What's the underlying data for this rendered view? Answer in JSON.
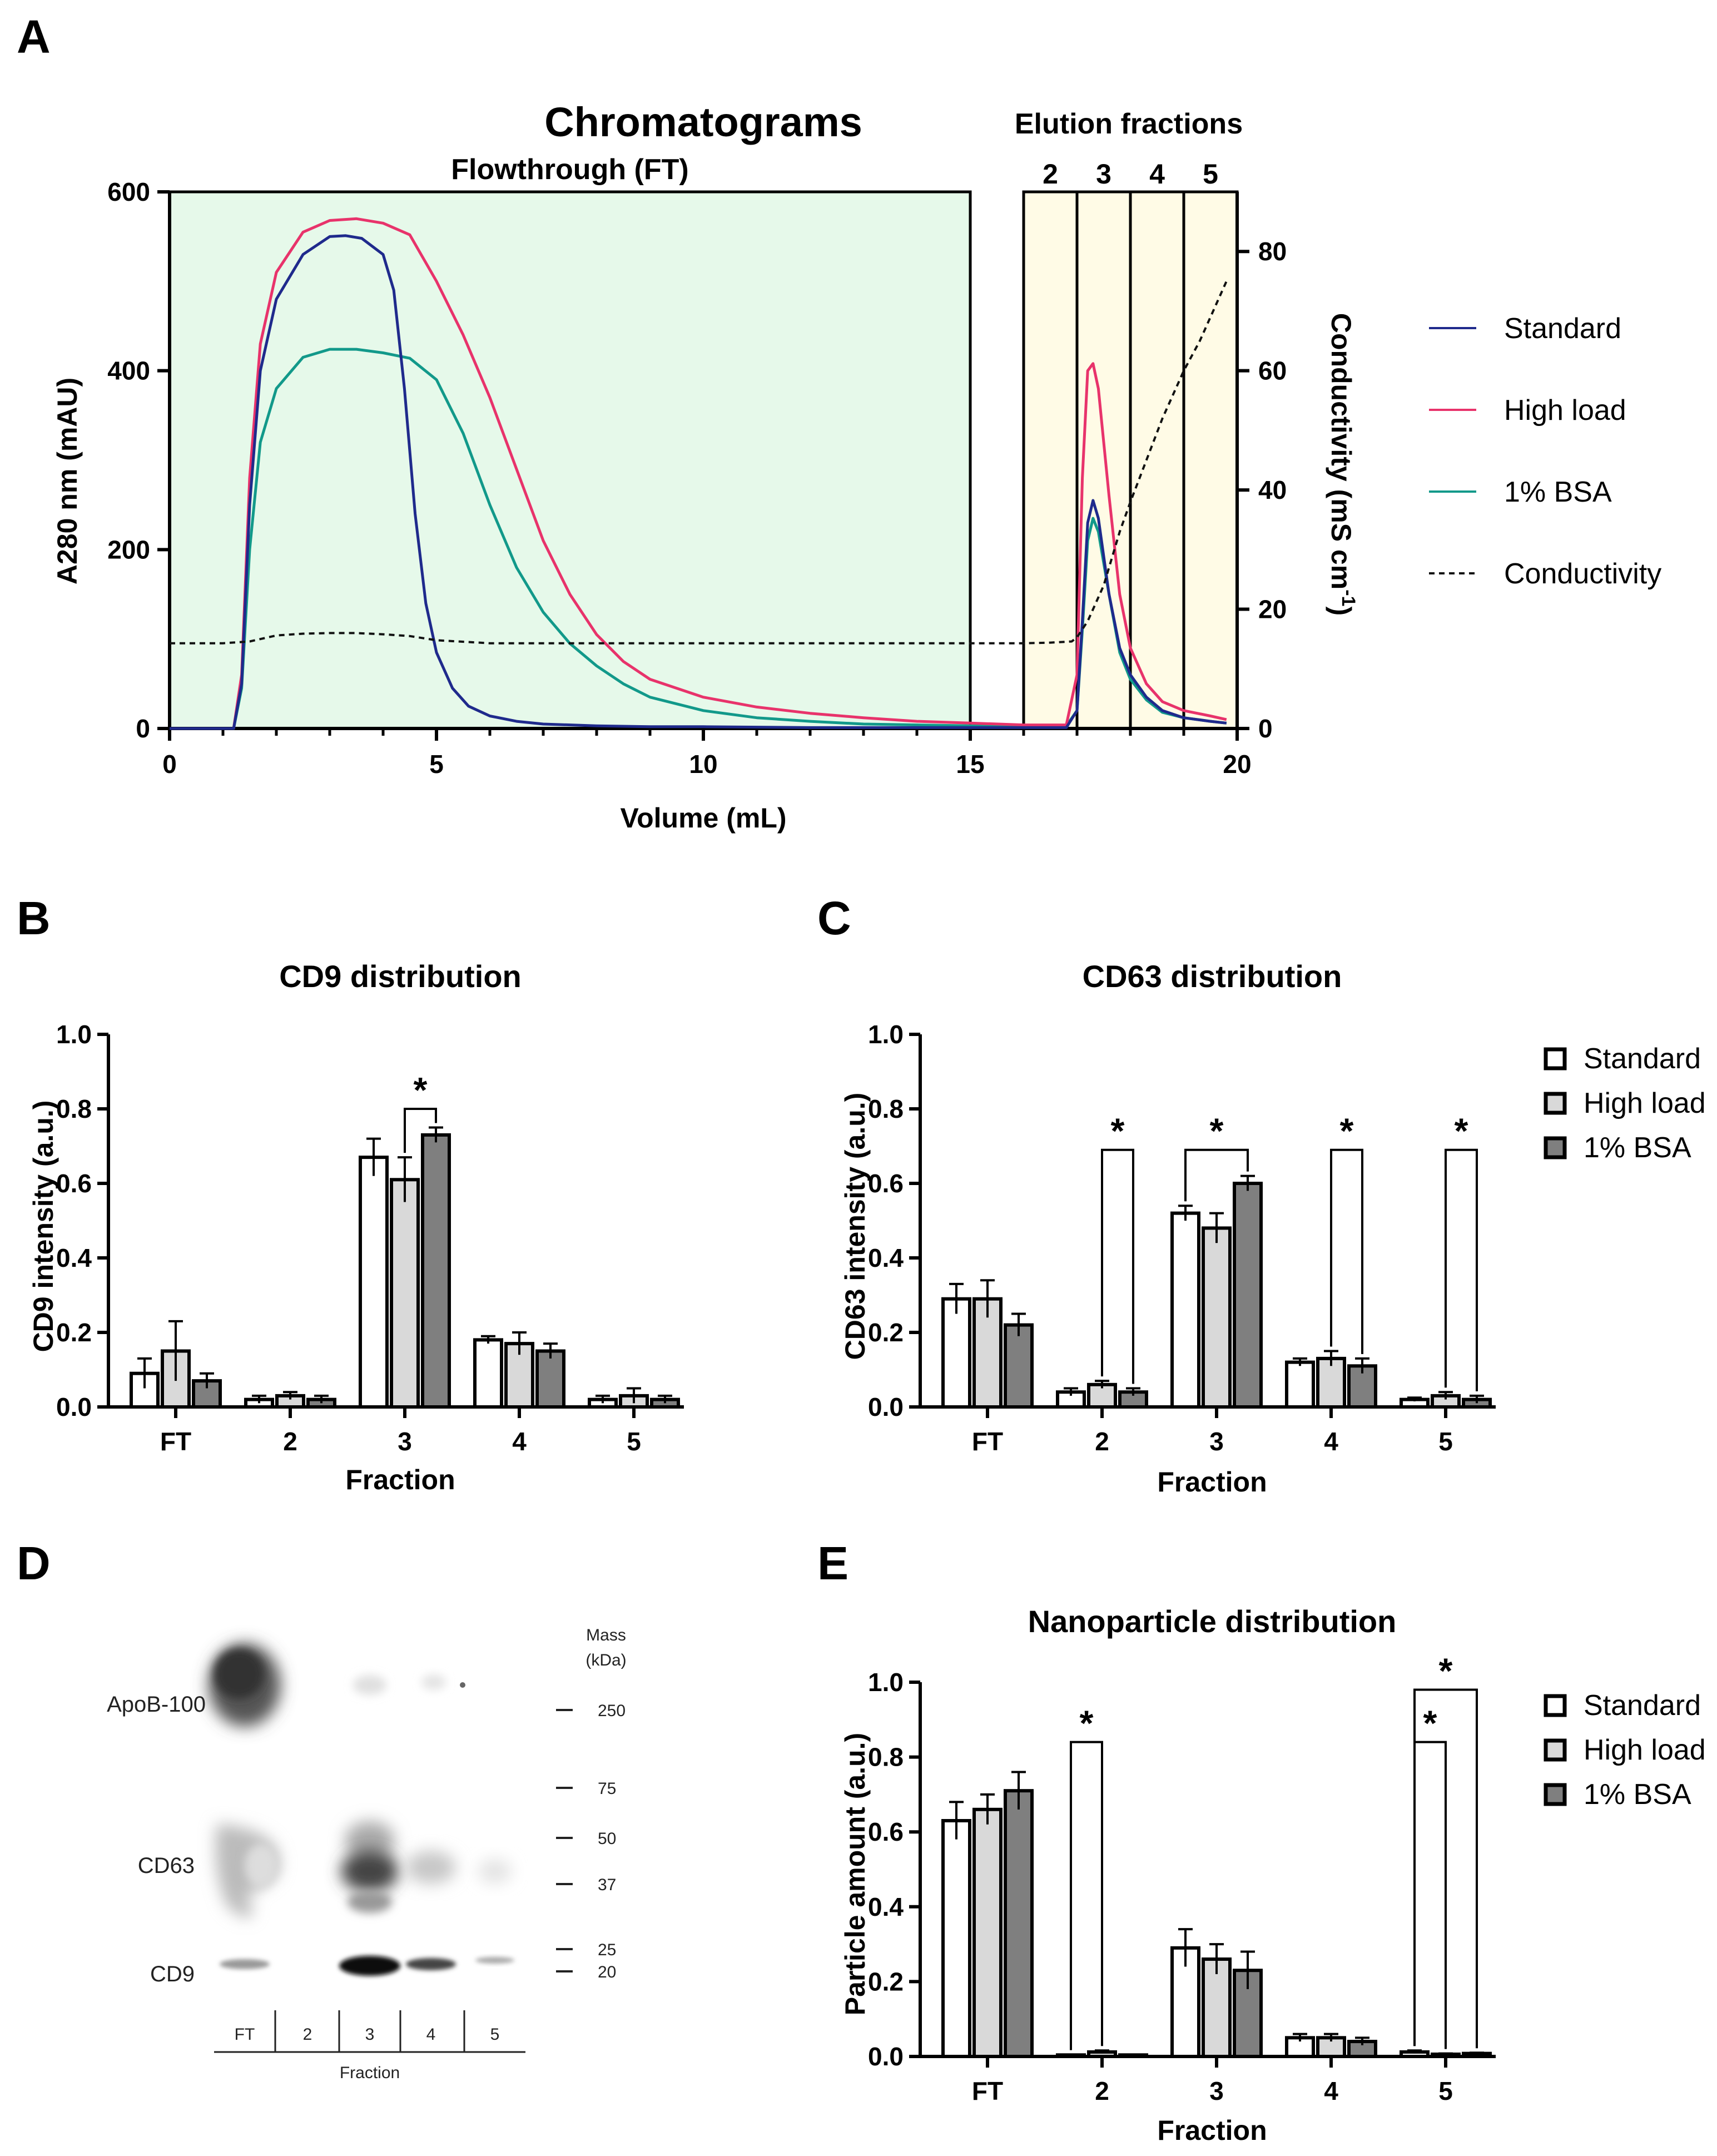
{
  "panels": {
    "A": {
      "letter": "A",
      "title": "Chromatograms",
      "flowthrough_label": "Flowthrough (FT)",
      "elution_label": "Elution fractions"
    },
    "B": {
      "letter": "B"
    },
    "C": {
      "letter": "C"
    },
    "D": {
      "letter": "D"
    },
    "E": {
      "letter": "E"
    }
  },
  "colors": {
    "standard": "#1f2a8c",
    "high_load": "#e8336b",
    "bsa": "#12998a",
    "conductivity": "#111111",
    "ft_fill": "#e6f9ea",
    "elution_fill": "#fffbe6",
    "bar_standard": "#ffffff",
    "bar_high_load": "#d9d9d9",
    "bar_bsa": "#7f7f7f"
  },
  "chart_data": [
    {
      "id": "A",
      "type": "line",
      "title": "Chromatograms",
      "xlabel": "Volume (mL)",
      "ylabel": "A280 nm  (mAU)",
      "y2label": "Conductivity (mS cm",
      "y2label_sup": "-1",
      "y2label_close": ")",
      "xlim": [
        0,
        20
      ],
      "ylim": [
        0,
        600
      ],
      "y2lim": [
        0,
        90
      ],
      "xticks": [
        "0",
        "5",
        "10",
        "15",
        "20"
      ],
      "xtick_values": [
        0,
        5,
        10,
        15,
        20
      ],
      "yticks": [
        "0",
        "200",
        "400",
        "600"
      ],
      "ytick_values": [
        0,
        200,
        400,
        600
      ],
      "y2ticks": [
        "0",
        "20",
        "40",
        "60",
        "80"
      ],
      "y2tick_values": [
        0,
        20,
        40,
        60,
        80
      ],
      "regions": {
        "flowthrough": [
          0,
          15
        ],
        "elution": [
          16,
          20
        ]
      },
      "fraction_boundaries": [
        17,
        18,
        19
      ],
      "fraction_labels": [
        "2",
        "3",
        "4",
        "5"
      ],
      "fraction_centers": [
        16.5,
        17.5,
        18.5,
        19.5
      ],
      "legend": [
        "Standard",
        "High load",
        "1% BSA",
        "Conductivity"
      ],
      "series": [
        {
          "name": "Standard",
          "axis": "left",
          "x": [
            0,
            1.2,
            1.35,
            1.5,
            1.7,
            2,
            2.5,
            3,
            3.3,
            3.6,
            4,
            4.2,
            4.4,
            4.6,
            4.8,
            5,
            5.3,
            5.6,
            6,
            6.5,
            7,
            8,
            9,
            10,
            12,
            15,
            16,
            16.8,
            17,
            17.1,
            17.2,
            17.3,
            17.4,
            17.6,
            17.8,
            18,
            18.3,
            18.6,
            19,
            19.5,
            19.8
          ],
          "y": [
            0,
            0,
            50,
            250,
            400,
            480,
            530,
            550,
            551,
            548,
            530,
            490,
            380,
            240,
            140,
            85,
            45,
            25,
            14,
            8,
            5,
            3,
            2,
            2,
            1,
            1,
            1,
            1,
            20,
            120,
            230,
            255,
            235,
            150,
            90,
            60,
            35,
            20,
            12,
            8,
            6
          ]
        },
        {
          "name": "High load",
          "axis": "left",
          "x": [
            0,
            1.2,
            1.35,
            1.5,
            1.7,
            2,
            2.5,
            3,
            3.5,
            4,
            4.5,
            5,
            5.5,
            6,
            6.5,
            7,
            7.5,
            8,
            8.5,
            9,
            10,
            11,
            12,
            13,
            14,
            15,
            16,
            16.8,
            17,
            17.1,
            17.2,
            17.3,
            17.4,
            17.6,
            17.8,
            18,
            18.3,
            18.6,
            19,
            19.5,
            19.8
          ],
          "y": [
            0,
            0,
            60,
            280,
            430,
            510,
            555,
            568,
            570,
            565,
            552,
            500,
            440,
            370,
            290,
            210,
            150,
            105,
            75,
            55,
            35,
            24,
            17,
            12,
            8,
            6,
            4,
            4,
            60,
            280,
            400,
            408,
            380,
            260,
            150,
            90,
            50,
            30,
            20,
            14,
            10
          ]
        },
        {
          "name": "1% BSA",
          "axis": "left",
          "x": [
            0,
            1.2,
            1.35,
            1.5,
            1.7,
            2,
            2.5,
            3,
            3.5,
            4,
            4.5,
            5,
            5.5,
            6,
            6.5,
            7,
            7.5,
            8,
            8.5,
            9,
            10,
            11,
            12,
            13,
            15,
            16,
            16.8,
            17,
            17.1,
            17.2,
            17.3,
            17.4,
            17.6,
            17.8,
            18,
            18.3,
            18.6,
            19,
            19.5,
            19.8
          ],
          "y": [
            0,
            0,
            45,
            200,
            320,
            380,
            415,
            424,
            424,
            420,
            414,
            390,
            330,
            250,
            180,
            130,
            95,
            70,
            50,
            35,
            20,
            12,
            8,
            5,
            3,
            3,
            3,
            20,
            110,
            210,
            235,
            220,
            150,
            85,
            55,
            32,
            18,
            12,
            8,
            6
          ]
        },
        {
          "name": "Conductivity",
          "axis": "right",
          "x": [
            0,
            1,
            1.5,
            2,
            2.5,
            3,
            3.5,
            4,
            4.5,
            5,
            6,
            8,
            10,
            12,
            15,
            16,
            16.5,
            16.9,
            17,
            17.2,
            17.5,
            17.8,
            18,
            18.3,
            18.6,
            19,
            19.3,
            19.6,
            19.8
          ],
          "y": [
            14.3,
            14.3,
            14.6,
            15.6,
            15.9,
            16,
            16,
            15.8,
            15.5,
            14.8,
            14.3,
            14.3,
            14.3,
            14.3,
            14.3,
            14.3,
            14.4,
            14.6,
            15.3,
            18,
            24,
            33,
            38,
            45,
            52,
            60,
            65,
            71,
            75
          ]
        }
      ]
    },
    {
      "id": "B",
      "type": "bar",
      "title": "CD9 distribution",
      "xlabel": "Fraction",
      "ylabel": "CD9 intensity (a.u.)",
      "ylim": [
        0,
        1.0
      ],
      "yticks": [
        "0.0",
        "0.2",
        "0.4",
        "0.6",
        "0.8",
        "1.0"
      ],
      "ytick_values": [
        0,
        0.2,
        0.4,
        0.6,
        0.8,
        1.0
      ],
      "categories": [
        "FT",
        "2",
        "3",
        "4",
        "5"
      ],
      "series": [
        {
          "name": "Standard",
          "values": [
            0.09,
            0.02,
            0.67,
            0.18,
            0.02
          ],
          "errors": [
            0.04,
            0.01,
            0.05,
            0.01,
            0.01
          ]
        },
        {
          "name": "High load",
          "values": [
            0.15,
            0.03,
            0.61,
            0.17,
            0.03
          ],
          "errors": [
            0.08,
            0.01,
            0.06,
            0.03,
            0.02
          ]
        },
        {
          "name": "1% BSA",
          "values": [
            0.07,
            0.02,
            0.73,
            0.15,
            0.02
          ],
          "errors": [
            0.02,
            0.01,
            0.02,
            0.02,
            0.01
          ]
        }
      ],
      "annotations": [
        {
          "label": "*",
          "category": 2,
          "from_series": 1,
          "to_series": 2,
          "y": 0.8
        }
      ]
    },
    {
      "id": "C",
      "type": "bar",
      "title": "CD63 distribution",
      "xlabel": "Fraction",
      "ylabel": "CD63 intensity (a.u.)",
      "ylim": [
        0,
        1.0
      ],
      "yticks": [
        "0.0",
        "0.2",
        "0.4",
        "0.6",
        "0.8",
        "1.0"
      ],
      "ytick_values": [
        0,
        0.2,
        0.4,
        0.6,
        0.8,
        1.0
      ],
      "categories": [
        "FT",
        "2",
        "3",
        "4",
        "5"
      ],
      "legend": [
        "Standard",
        "High load",
        "1% BSA"
      ],
      "series": [
        {
          "name": "Standard",
          "values": [
            0.29,
            0.04,
            0.52,
            0.12,
            0.02
          ],
          "errors": [
            0.04,
            0.01,
            0.02,
            0.01,
            0.005
          ]
        },
        {
          "name": "High load",
          "values": [
            0.29,
            0.06,
            0.48,
            0.13,
            0.03
          ],
          "errors": [
            0.05,
            0.01,
            0.04,
            0.02,
            0.01
          ]
        },
        {
          "name": "1% BSA",
          "values": [
            0.22,
            0.04,
            0.6,
            0.11,
            0.02
          ],
          "errors": [
            0.03,
            0.01,
            0.02,
            0.02,
            0.01
          ]
        }
      ],
      "annotations": [
        {
          "label": "*",
          "category": 1,
          "from_series": 1,
          "to_series": 2,
          "y": 0.69
        },
        {
          "label": "*",
          "category": 2,
          "from_series": 0,
          "to_series": 2,
          "y": 0.69
        },
        {
          "label": "*",
          "category": 3,
          "from_series": 1,
          "to_series": 2,
          "y": 0.69
        },
        {
          "label": "*",
          "category": 4,
          "from_series": 1,
          "to_series": 2,
          "y": 0.69
        }
      ]
    },
    {
      "id": "E",
      "type": "bar",
      "title": "Nanoparticle distribution",
      "xlabel": "Fraction",
      "ylabel": "Particle amount (a.u.)",
      "ylim": [
        0,
        1.0
      ],
      "yticks": [
        "0.0",
        "0.2",
        "0.4",
        "0.6",
        "0.8",
        "1.0"
      ],
      "ytick_values": [
        0,
        0.2,
        0.4,
        0.6,
        0.8,
        1.0
      ],
      "categories": [
        "FT",
        "2",
        "3",
        "4",
        "5"
      ],
      "legend": [
        "Standard",
        "High load",
        "1% BSA"
      ],
      "series": [
        {
          "name": "Standard",
          "values": [
            0.63,
            0.004,
            0.29,
            0.05,
            0.012
          ],
          "errors": [
            0.05,
            0.001,
            0.05,
            0.01,
            0.004
          ]
        },
        {
          "name": "High load",
          "values": [
            0.66,
            0.012,
            0.26,
            0.05,
            0.006
          ],
          "errors": [
            0.04,
            0.004,
            0.04,
            0.01,
            0.002
          ]
        },
        {
          "name": "1% BSA",
          "values": [
            0.71,
            0.004,
            0.23,
            0.04,
            0.008
          ],
          "errors": [
            0.05,
            0.001,
            0.05,
            0.01,
            0.002
          ]
        }
      ],
      "annotations": [
        {
          "label": "*",
          "category": 1,
          "from_series": 0,
          "to_series": 1,
          "y": 0.84
        },
        {
          "label": "*",
          "category": 4,
          "from_series": 0,
          "to_series": 1,
          "y": 0.84
        },
        {
          "label": "*",
          "category": 4,
          "from_series": 0,
          "to_series": 2,
          "y": 0.98
        }
      ]
    }
  ],
  "blot": {
    "labels": {
      "apob": "ApoB-100",
      "cd63": "CD63",
      "cd9": "CD9"
    },
    "mass_title_1": "Mass",
    "mass_title_2": "(kDa)",
    "mass_markers": [
      "250",
      "75",
      "50",
      "37",
      "25",
      "20"
    ],
    "lanes": [
      "FT",
      "2",
      "3",
      "4",
      "5"
    ],
    "xlabel": "Fraction"
  }
}
